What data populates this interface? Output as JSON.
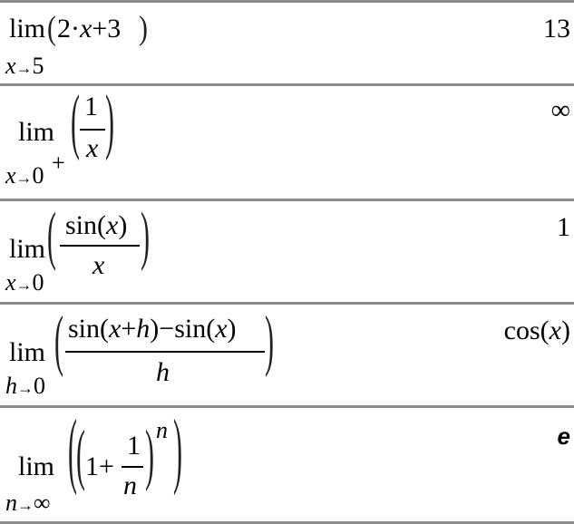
{
  "history": [
    {
      "lim": "lim",
      "var": "x",
      "arrow": "→",
      "approach": "5",
      "expr": {
        "a": "2",
        "dot": "·",
        "x": "x",
        "plus": "+",
        "b": "3"
      },
      "result": "13"
    },
    {
      "lim": "lim",
      "var": "x",
      "arrow": "→",
      "approach": "0",
      "side": "+",
      "expr": {
        "num": "1",
        "den": "x"
      },
      "result": "∞"
    },
    {
      "lim": "lim",
      "var": "x",
      "arrow": "→",
      "approach": "0",
      "expr": {
        "num_fn": "sin",
        "num_arg": "x",
        "den": "x"
      },
      "result": "1"
    },
    {
      "lim": "lim",
      "var": "h",
      "arrow": "→",
      "approach": "0",
      "expr": {
        "fn1": "sin",
        "x": "x",
        "plus": "+",
        "h": "h",
        "minus": "−",
        "fn2": "sin",
        "x2": "x",
        "den": "h"
      },
      "result_fn": "cos",
      "result_arg": "x"
    },
    {
      "lim": "lim",
      "var": "n",
      "arrow": "→",
      "approach": "∞",
      "expr": {
        "one": "1",
        "plus": "+",
        "num": "1",
        "den": "n",
        "exp": "n"
      },
      "result": "e"
    }
  ]
}
